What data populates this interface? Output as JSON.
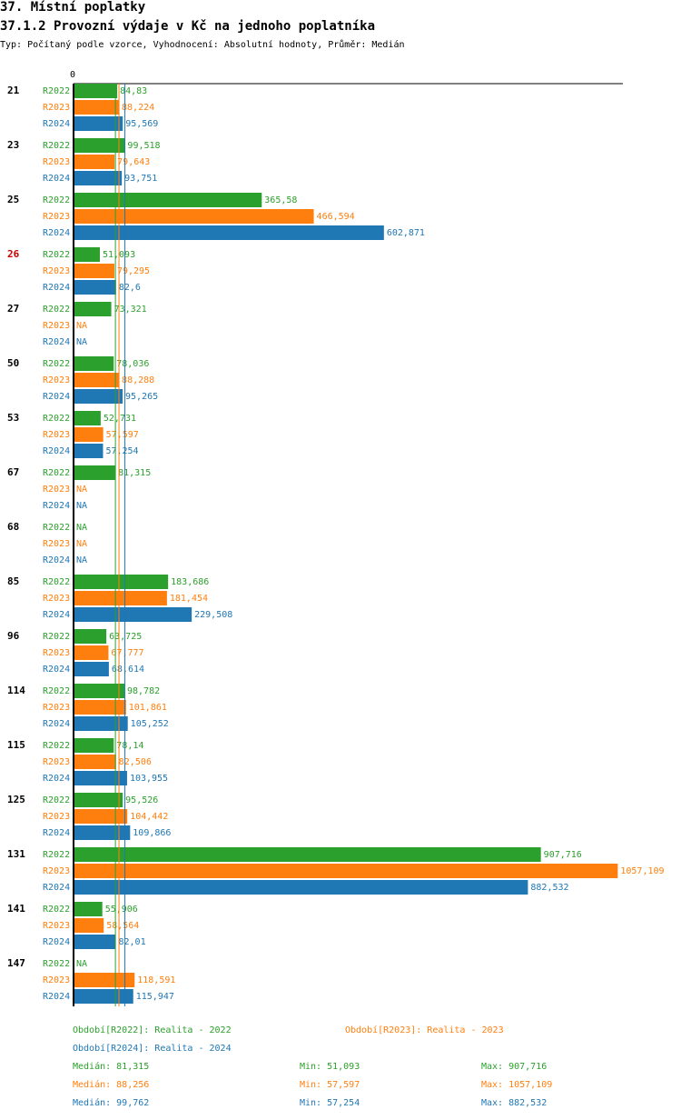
{
  "header": {
    "title": "37. Místní poplatky",
    "subtitle": "37.1.2 Provozní výdaje v Kč na jednoho poplatníka",
    "description": "Typ: Počítaný podle vzorce, Vyhodnocení: Absolutní hodnoty, Průměr: Medián"
  },
  "colors": {
    "R2022": "#2ca02c",
    "R2023": "#ff7f0e",
    "R2024": "#1f77b4",
    "highlight": "#cc0000",
    "text": "#000000"
  },
  "chart_data": {
    "type": "bar",
    "orientation": "horizontal",
    "title": "37.1.2 Provozní výdaje v Kč na jednoho poplatníka",
    "xlim": [
      0,
      1057.109
    ],
    "x_tick_labels": [
      "0"
    ],
    "series_names": [
      "R2022",
      "R2023",
      "R2024"
    ],
    "groups": [
      {
        "label": "21",
        "highlight": false,
        "values": [
          84.83,
          88.224,
          95.569
        ],
        "labels": [
          "84,83",
          "88,224",
          "95,569"
        ]
      },
      {
        "label": "23",
        "highlight": false,
        "values": [
          99.518,
          79.643,
          93.751
        ],
        "labels": [
          "99,518",
          "79,643",
          "93,751"
        ]
      },
      {
        "label": "25",
        "highlight": false,
        "values": [
          365.58,
          466.594,
          602.871
        ],
        "labels": [
          "365,58",
          "466,594",
          "602,871"
        ]
      },
      {
        "label": "26",
        "highlight": true,
        "values": [
          51.093,
          79.295,
          82.6
        ],
        "labels": [
          "51,093",
          "79,295",
          "82,6"
        ]
      },
      {
        "label": "27",
        "highlight": false,
        "values": [
          73.321,
          null,
          null
        ],
        "labels": [
          "73,321",
          "NA",
          "NA"
        ]
      },
      {
        "label": "50",
        "highlight": false,
        "values": [
          78.036,
          88.288,
          95.265
        ],
        "labels": [
          "78,036",
          "88,288",
          "95,265"
        ]
      },
      {
        "label": "53",
        "highlight": false,
        "values": [
          52.731,
          57.597,
          57.254
        ],
        "labels": [
          "52,731",
          "57,597",
          "57,254"
        ]
      },
      {
        "label": "67",
        "highlight": false,
        "values": [
          81.315,
          null,
          null
        ],
        "labels": [
          "81,315",
          "NA",
          "NA"
        ]
      },
      {
        "label": "68",
        "highlight": false,
        "values": [
          null,
          null,
          null
        ],
        "labels": [
          "NA",
          "NA",
          "NA"
        ]
      },
      {
        "label": "85",
        "highlight": false,
        "values": [
          183.686,
          181.454,
          229.508
        ],
        "labels": [
          "183,686",
          "181,454",
          "229,508"
        ]
      },
      {
        "label": "96",
        "highlight": false,
        "values": [
          63.725,
          67.777,
          68.614
        ],
        "labels": [
          "63,725",
          "67,777",
          "68,614"
        ]
      },
      {
        "label": "114",
        "highlight": false,
        "values": [
          98.782,
          101.861,
          105.252
        ],
        "labels": [
          "98,782",
          "101,861",
          "105,252"
        ]
      },
      {
        "label": "115",
        "highlight": false,
        "values": [
          78.14,
          82.506,
          103.955
        ],
        "labels": [
          "78,14",
          "82,506",
          "103,955"
        ]
      },
      {
        "label": "125",
        "highlight": false,
        "values": [
          95.526,
          104.442,
          109.866
        ],
        "labels": [
          "95,526",
          "104,442",
          "109,866"
        ]
      },
      {
        "label": "131",
        "highlight": false,
        "values": [
          907.716,
          1057.109,
          882.532
        ],
        "labels": [
          "907,716",
          "1057,109",
          "882,532"
        ]
      },
      {
        "label": "141",
        "highlight": false,
        "values": [
          55.906,
          58.564,
          82.01
        ],
        "labels": [
          "55,906",
          "58,564",
          "82,01"
        ]
      },
      {
        "label": "147",
        "highlight": false,
        "values": [
          null,
          118.591,
          115.947
        ],
        "labels": [
          "NA",
          "118,591",
          "115,947"
        ]
      }
    ],
    "medians": [
      81.315,
      88.256,
      99.762
    ]
  },
  "legend": {
    "periods": [
      "Období[R2022]: Realita - 2022",
      "Období[R2023]: Realita - 2023",
      "Období[R2024]: Realita - 2024"
    ],
    "stats": [
      {
        "median": "Medián: 81,315",
        "min": "Min: 51,093",
        "max": "Max: 907,716"
      },
      {
        "median": "Medián: 88,256",
        "min": "Min: 57,597",
        "max": "Max: 1057,109"
      },
      {
        "median": "Medián: 99,762",
        "min": "Min: 57,254",
        "max": "Max: 882,532"
      }
    ]
  }
}
